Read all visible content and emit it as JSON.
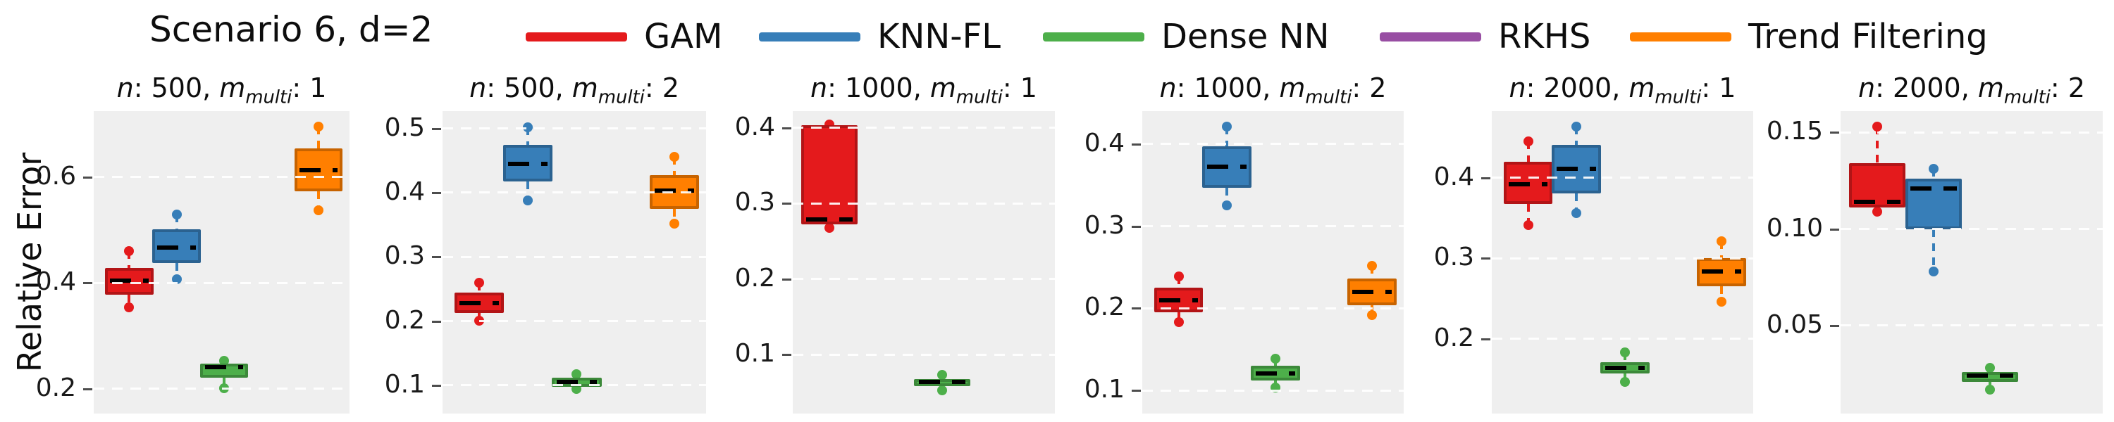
{
  "figure": {
    "title": "Scenario 6, d=2"
  },
  "y_axis_label": "Relative Error",
  "title_symbols": {
    "n": "n",
    "m": "m",
    "m_sub": "multi"
  },
  "colors": {
    "plot_bg": "#efefef",
    "grid": "#ffffff",
    "mean_line": "#000000",
    "text": "#0d0d0d",
    "tick_text": "#1a1a1a"
  },
  "legend": [
    {
      "label": "GAM",
      "color": "#e41a1c"
    },
    {
      "label": "KNN-FL",
      "color": "#377eb8"
    },
    {
      "label": "Dense NN",
      "color": "#4daf4a"
    },
    {
      "label": "RKHS",
      "color": "#984ea3"
    },
    {
      "label": "Trend Filtering",
      "color": "#ff7f00"
    }
  ],
  "chart_data": {
    "type": "box",
    "ylabel": "Relative Error",
    "grid": "horizontal-dashed-white",
    "legend_position": "top",
    "panels": [
      {
        "title": "n: 500, m_multi: 1",
        "n": "500",
        "m_multi": "1",
        "ylim": [
          0.153,
          0.725
        ],
        "yticks": [
          {
            "value": 0.6,
            "label": "0.6"
          },
          {
            "value": 0.4,
            "label": "0.4"
          },
          {
            "value": 0.2,
            "label": "0.2"
          }
        ],
        "n_slots": 5,
        "boxes": [
          {
            "method": "GAM",
            "slot": 0,
            "whisker_low": 0.354,
            "q1": 0.378,
            "median": 0.404,
            "q3": 0.429,
            "whisker_high": 0.46
          },
          {
            "method": "KNN-FL",
            "slot": 1,
            "whisker_low": 0.407,
            "q1": 0.438,
            "median": 0.467,
            "q3": 0.502,
            "whisker_high": 0.53
          },
          {
            "method": "Dense NN",
            "slot": 2,
            "whisker_low": 0.201,
            "q1": 0.221,
            "median": 0.241,
            "q3": 0.247,
            "whisker_high": 0.253
          },
          {
            "method": "Trend Filtering",
            "slot": 4,
            "whisker_low": 0.537,
            "q1": 0.573,
            "median": 0.613,
            "q3": 0.654,
            "whisker_high": 0.696
          }
        ]
      },
      {
        "title": "n: 500, m_multi: 2",
        "n": "500",
        "m_multi": "2",
        "ylim": [
          0.056,
          0.527
        ],
        "yticks": [
          {
            "value": 0.5,
            "label": "0.5"
          },
          {
            "value": 0.4,
            "label": "0.4"
          },
          {
            "value": 0.3,
            "label": "0.3"
          },
          {
            "value": 0.2,
            "label": "0.2"
          },
          {
            "value": 0.1,
            "label": "0.1"
          }
        ],
        "n_slots": 5,
        "boxes": [
          {
            "method": "GAM",
            "slot": 0,
            "whisker_low": 0.201,
            "q1": 0.213,
            "median": 0.228,
            "q3": 0.244,
            "whisker_high": 0.26
          },
          {
            "method": "KNN-FL",
            "slot": 1,
            "whisker_low": 0.388,
            "q1": 0.417,
            "median": 0.445,
            "q3": 0.474,
            "whisker_high": 0.502
          },
          {
            "method": "Dense NN",
            "slot": 2,
            "whisker_low": 0.094,
            "q1": 0.098,
            "median": 0.105,
            "q3": 0.112,
            "whisker_high": 0.117
          },
          {
            "method": "Trend Filtering",
            "slot": 4,
            "whisker_low": 0.352,
            "q1": 0.375,
            "median": 0.403,
            "q3": 0.427,
            "whisker_high": 0.456
          }
        ]
      },
      {
        "title": "n: 1000, m_multi: 1",
        "n": "1000",
        "m_multi": "1",
        "ylim": [
          0.022,
          0.422
        ],
        "yticks": [
          {
            "value": 0.4,
            "label": "0.4"
          },
          {
            "value": 0.3,
            "label": "0.3"
          },
          {
            "value": 0.2,
            "label": "0.2"
          },
          {
            "value": 0.1,
            "label": "0.1"
          }
        ],
        "n_slots": 4,
        "boxes": [
          {
            "method": "GAM",
            "slot": 0,
            "whisker_low": 0.268,
            "q1": 0.272,
            "median": 0.279,
            "q3": 0.403,
            "whisker_high": 0.404
          },
          {
            "method": "Dense NN",
            "slot": 2,
            "whisker_low": 0.053,
            "q1": 0.058,
            "median": 0.064,
            "q3": 0.068,
            "whisker_high": 0.073
          }
        ]
      },
      {
        "title": "n: 1000, m_multi: 2",
        "n": "1000",
        "m_multi": "2",
        "ylim": [
          0.072,
          0.44
        ],
        "yticks": [
          {
            "value": 0.4,
            "label": "0.4"
          },
          {
            "value": 0.3,
            "label": "0.3"
          },
          {
            "value": 0.2,
            "label": "0.2"
          },
          {
            "value": 0.1,
            "label": "0.1"
          }
        ],
        "n_slots": 5,
        "boxes": [
          {
            "method": "GAM",
            "slot": 0,
            "whisker_low": 0.183,
            "q1": 0.195,
            "median": 0.21,
            "q3": 0.225,
            "whisker_high": 0.239
          },
          {
            "method": "KNN-FL",
            "slot": 1,
            "whisker_low": 0.325,
            "q1": 0.347,
            "median": 0.372,
            "q3": 0.397,
            "whisker_high": 0.421
          },
          {
            "method": "Dense NN",
            "slot": 2,
            "whisker_low": 0.104,
            "q1": 0.112,
            "median": 0.121,
            "q3": 0.13,
            "whisker_high": 0.139
          },
          {
            "method": "Trend Filtering",
            "slot": 4,
            "whisker_low": 0.192,
            "q1": 0.204,
            "median": 0.22,
            "q3": 0.236,
            "whisker_high": 0.252
          }
        ]
      },
      {
        "title": "n: 2000, m_multi: 1",
        "n": "2000",
        "m_multi": "1",
        "ylim": [
          0.107,
          0.483
        ],
        "yticks": [
          {
            "value": 0.4,
            "label": "0.4"
          },
          {
            "value": 0.3,
            "label": "0.3"
          },
          {
            "value": 0.2,
            "label": "0.2"
          }
        ],
        "n_slots": 5,
        "boxes": [
          {
            "method": "GAM",
            "slot": 0,
            "whisker_low": 0.341,
            "q1": 0.368,
            "median": 0.392,
            "q3": 0.42,
            "whisker_high": 0.445
          },
          {
            "method": "KNN-FL",
            "slot": 1,
            "whisker_low": 0.356,
            "q1": 0.381,
            "median": 0.411,
            "q3": 0.441,
            "whisker_high": 0.464
          },
          {
            "method": "Dense NN",
            "slot": 2,
            "whisker_low": 0.146,
            "q1": 0.157,
            "median": 0.164,
            "q3": 0.171,
            "whisker_high": 0.183
          },
          {
            "method": "Trend Filtering",
            "slot": 4,
            "whisker_low": 0.246,
            "q1": 0.265,
            "median": 0.284,
            "q3": 0.3,
            "whisker_high": 0.321
          }
        ]
      },
      {
        "title": "n: 2000, m_multi: 2",
        "n": "2000",
        "m_multi": "2",
        "ylim": [
          0.0045,
          0.161
        ],
        "yticks": [
          {
            "value": 0.15,
            "label": "0.15"
          },
          {
            "value": 0.1,
            "label": "0.10"
          },
          {
            "value": 0.05,
            "label": "0.05"
          }
        ],
        "n_slots": 4,
        "boxes": [
          {
            "method": "GAM",
            "slot": 0,
            "whisker_low": 0.109,
            "q1": 0.111,
            "median": 0.114,
            "q3": 0.134,
            "whisker_high": 0.153
          },
          {
            "method": "KNN-FL",
            "slot": 1,
            "whisker_low": 0.078,
            "q1": 0.1,
            "median": 0.121,
            "q3": 0.126,
            "whisker_high": 0.131
          },
          {
            "method": "Dense NN",
            "slot": 2,
            "whisker_low": 0.017,
            "q1": 0.021,
            "median": 0.024,
            "q3": 0.026,
            "whisker_high": 0.028
          }
        ]
      }
    ]
  }
}
